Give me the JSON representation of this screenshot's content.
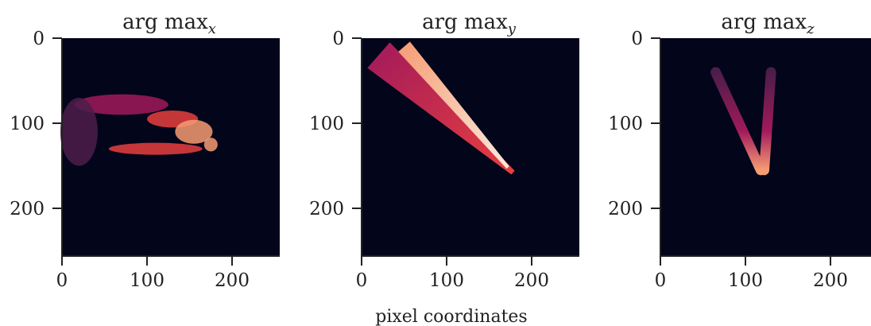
{
  "figure": {
    "xlabel": "pixel coordinates"
  },
  "chart_data": [
    {
      "type": "heatmap",
      "title": "arg max",
      "title_subscript": "x",
      "xlim": [
        0,
        256
      ],
      "ylim": [
        256,
        0
      ],
      "xticks": [
        0,
        100,
        200
      ],
      "yticks": [
        0,
        100,
        200
      ],
      "colormap": [
        "#03051a",
        "#4c1d4b",
        "#a11a5b",
        "#e83f3f",
        "#f69c73",
        "#faebdd"
      ],
      "blobs": [
        {
          "cx": 70,
          "cy": 78,
          "rx": 55,
          "ry": 12,
          "value": 0.42
        },
        {
          "cx": 130,
          "cy": 95,
          "rx": 30,
          "ry": 10,
          "value": 0.62
        },
        {
          "cx": 155,
          "cy": 110,
          "rx": 22,
          "ry": 14,
          "value": 0.8
        },
        {
          "cx": 175,
          "cy": 125,
          "rx": 8,
          "ry": 8,
          "value": 0.88
        },
        {
          "cx": 110,
          "cy": 130,
          "rx": 55,
          "ry": 7,
          "value": 0.55
        },
        {
          "cx": 20,
          "cy": 110,
          "rx": 22,
          "ry": 40,
          "value": 0.22
        }
      ]
    },
    {
      "type": "heatmap",
      "title": "arg max",
      "title_subscript": "y",
      "xlim": [
        0,
        256
      ],
      "ylim": [
        256,
        0
      ],
      "xticks": [
        0,
        100,
        200
      ],
      "yticks": [
        0,
        100,
        200
      ],
      "colormap": [
        "#03051a",
        "#4c1d4b",
        "#a11a5b",
        "#e83f3f",
        "#f69c73",
        "#faebdd"
      ],
      "band": {
        "start": [
          20,
          20
        ],
        "end": [
          178,
          158
        ],
        "width_start": 40,
        "width_end": 6,
        "inner": {
          "start": [
            50,
            10
          ],
          "end": [
            172,
            152
          ],
          "width_start": 18,
          "width_end": 4
        }
      }
    },
    {
      "type": "heatmap",
      "title": "arg max",
      "title_subscript": "z",
      "xlim": [
        0,
        256
      ],
      "ylim": [
        256,
        0
      ],
      "xticks": [
        0,
        100,
        200
      ],
      "yticks": [
        0,
        100,
        200
      ],
      "colormap": [
        "#03051a",
        "#4c1d4b",
        "#a11a5b",
        "#e83f3f",
        "#f69c73",
        "#faebdd"
      ],
      "v_shape": {
        "left_arm": [
          [
            65,
            40
          ],
          [
            118,
            155
          ]
        ],
        "right_arm": [
          [
            130,
            40
          ],
          [
            122,
            155
          ]
        ],
        "width": 12
      }
    }
  ]
}
